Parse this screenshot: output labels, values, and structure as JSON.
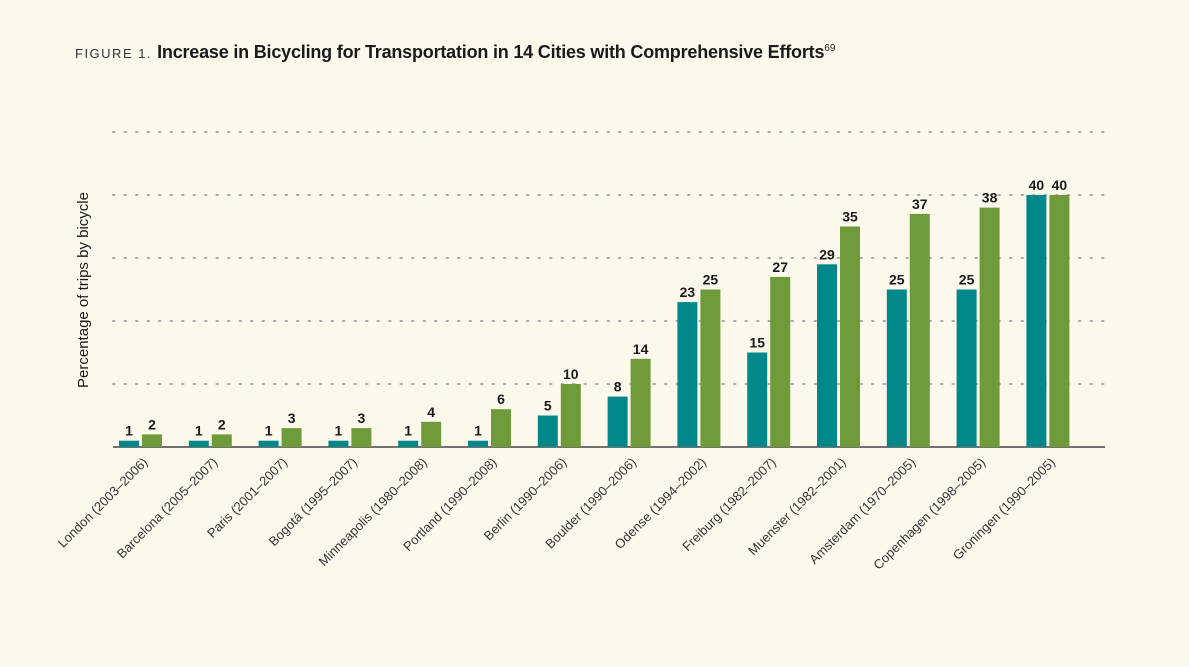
{
  "figure_label": "FIGURE 1.",
  "title_superscript": "69",
  "chart_data": {
    "type": "bar",
    "title": "Increase in Bicycling for Transportation in 14 Cities with Comprehensive Efforts",
    "xlabel": "",
    "ylabel": "Percentage of trips by bicycle",
    "ylim": [
      0,
      50
    ],
    "grid": true,
    "gridlines": [
      10,
      20,
      30,
      40,
      50
    ],
    "categories": [
      "London (2003–2006)",
      "Barcelona (2005–2007)",
      "Paris (2001–2007)",
      "Bogotá (1995–2007)",
      "Minneapolis (1980–2008)",
      "Portland (1990–2008)",
      "Berlin (1990–2006)",
      "Boulder (1990–2006)",
      "Odense (1994–2002)",
      "Freiburg (1982–2007)",
      "Muenster (1982–2001)",
      "Amsterdam (1970–2005)",
      "Copenhagen (1998–2005)",
      "Groningen (1990–2005)"
    ],
    "series": [
      {
        "values": [
          1,
          1,
          1,
          1,
          1,
          1,
          5,
          8,
          23,
          15,
          29,
          25,
          25,
          40
        ],
        "color": "#00878a"
      },
      {
        "values": [
          2,
          2,
          3,
          3,
          4,
          6,
          10,
          14,
          25,
          27,
          35,
          37,
          38,
          40
        ],
        "color": "#6f9a3a"
      }
    ]
  }
}
